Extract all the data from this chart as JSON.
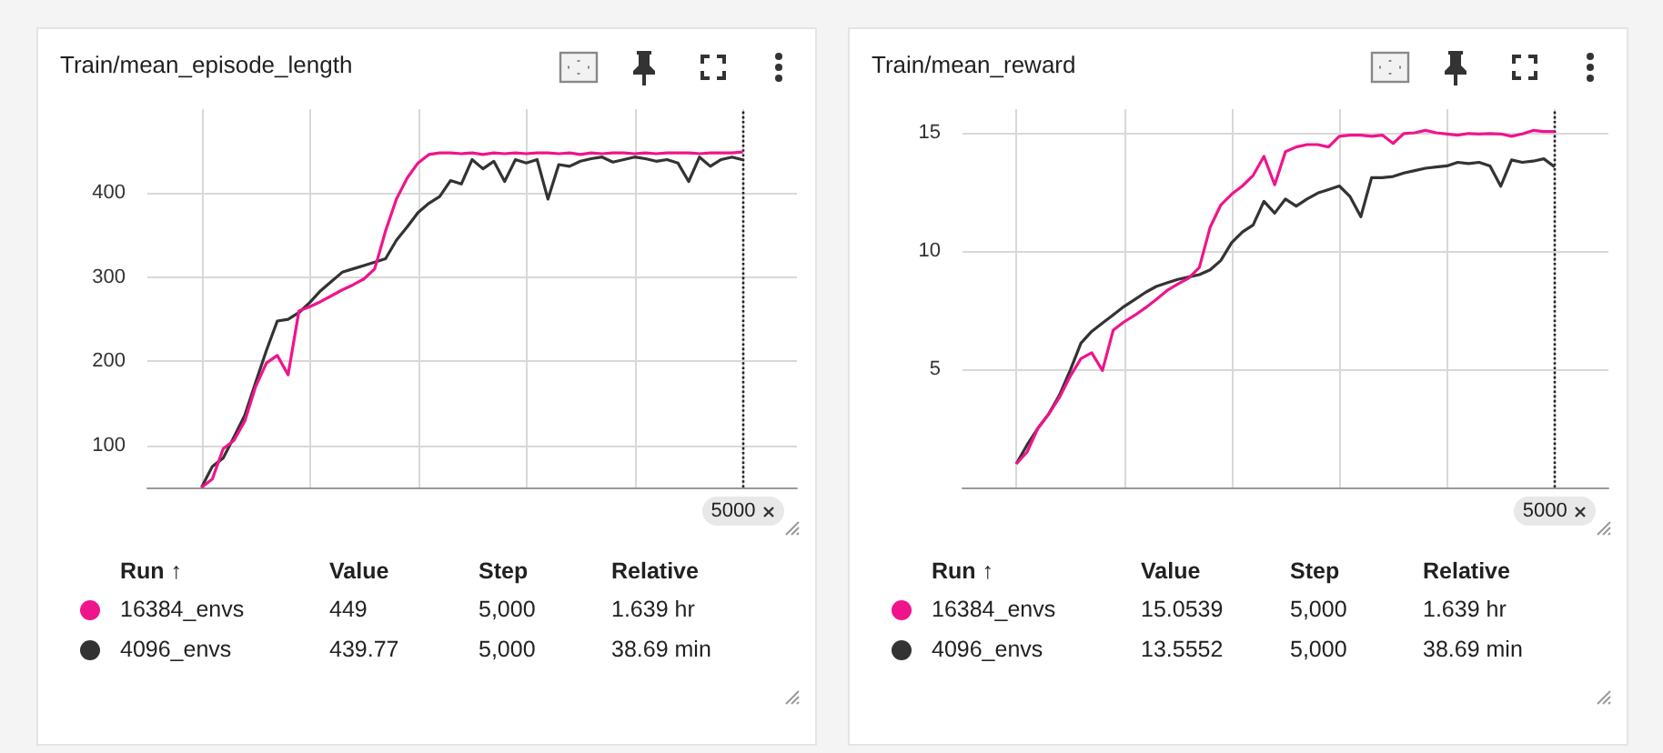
{
  "chart_data": [
    {
      "type": "line",
      "title": "Train/mean_episode_length",
      "ylim": [
        50,
        500
      ],
      "yticks": [
        100,
        200,
        300,
        400
      ],
      "tick_labels": "y",
      "grid": true,
      "legend": "bottom",
      "line_style": "solid",
      "categories": [
        null,
        null,
        null,
        null,
        null,
        null,
        null,
        null,
        null,
        null,
        null,
        null,
        null,
        null,
        null,
        null,
        null,
        null,
        null,
        null,
        null,
        null,
        null,
        null,
        null,
        null,
        null,
        null,
        null,
        null,
        null,
        null,
        null,
        null,
        null,
        null,
        null,
        null,
        null,
        null,
        null,
        null,
        null,
        null,
        null,
        null,
        null,
        null,
        null,
        null,
        null,
        null,
        null,
        null,
        null,
        null,
        null,
        null,
        null,
        null,
        null
      ],
      "annotations": [
        "5000",
        "Run ↑",
        "Value",
        "Step",
        "Relative",
        "449",
        "5,000",
        "1.639 hr",
        "439.77",
        "5,000",
        "38.69 min"
      ],
      "series": [
        {
          "name": "16384_envs",
          "color": "#f0148c",
          "values": [
            null,
            null,
            null,
            null,
            null,
            50,
            60,
            96,
            106,
            129,
            170,
            198,
            207,
            184,
            260,
            265,
            271,
            278,
            285,
            291,
            298,
            310,
            355,
            393,
            418,
            436,
            446,
            448,
            448,
            447,
            448,
            446,
            448,
            447,
            448,
            447,
            448,
            448,
            447,
            448,
            446,
            448,
            447,
            448,
            448,
            447,
            448,
            447,
            448,
            448,
            448,
            447,
            448,
            448,
            448,
            449,
            null,
            null,
            null,
            null,
            null
          ]
        },
        {
          "name": "4096_envs",
          "color": "#333333",
          "values": [
            null,
            null,
            null,
            null,
            null,
            50,
            75,
            85,
            110,
            136,
            175,
            213,
            248,
            250,
            258,
            270,
            284,
            295,
            306,
            310,
            314,
            318,
            322,
            344,
            360,
            377,
            388,
            396,
            415,
            411,
            440,
            429,
            438,
            414,
            440,
            436,
            440,
            393,
            434,
            432,
            438,
            441,
            443,
            437,
            440,
            443,
            441,
            438,
            440,
            436,
            414,
            443,
            432,
            440,
            443,
            439.77,
            null,
            null,
            null,
            null,
            null
          ]
        }
      ]
    },
    {
      "type": "line",
      "title": "Train/mean_reward",
      "ylim": [
        0,
        16
      ],
      "yticks": [
        5,
        10,
        15
      ],
      "tick_labels": "y",
      "grid": true,
      "legend": "bottom",
      "line_style": "solid",
      "categories": [
        null,
        null,
        null,
        null,
        null,
        null,
        null,
        null,
        null,
        null,
        null,
        null,
        null,
        null,
        null,
        null,
        null,
        null,
        null,
        null,
        null,
        null,
        null,
        null,
        null,
        null,
        null,
        null,
        null,
        null,
        null,
        null,
        null,
        null,
        null,
        null,
        null,
        null,
        null,
        null,
        null,
        null,
        null,
        null,
        null,
        null,
        null,
        null,
        null,
        null,
        null,
        null,
        null,
        null,
        null,
        null,
        null,
        null,
        null,
        null,
        null
      ],
      "annotations": [
        "5000",
        "Run ↑",
        "Value",
        "Step",
        "Relative",
        "15.0539",
        "5,000",
        "1.639 hr",
        "13.5552",
        "5,000",
        "38.69 min"
      ],
      "series": [
        {
          "name": "16384_envs",
          "color": "#f0148c",
          "values": [
            null,
            null,
            null,
            null,
            null,
            1.0,
            1.5,
            2.5,
            3.1,
            3.8,
            4.7,
            5.45,
            5.7,
            4.95,
            6.65,
            7.0,
            7.28,
            7.6,
            7.95,
            8.33,
            8.6,
            8.85,
            9.3,
            11.0,
            11.95,
            12.4,
            12.75,
            13.2,
            14.0,
            12.8,
            14.2,
            14.4,
            14.5,
            14.5,
            14.4,
            14.85,
            14.9,
            14.9,
            14.85,
            14.9,
            14.55,
            14.97,
            15.0,
            15.1,
            15.0,
            14.95,
            14.9,
            14.97,
            14.95,
            14.97,
            14.95,
            14.85,
            14.95,
            15.1,
            15.05,
            15.0539,
            null,
            null,
            null,
            null,
            null
          ]
        },
        {
          "name": "4096_envs",
          "color": "#333333",
          "values": [
            null,
            null,
            null,
            null,
            null,
            1.0,
            1.8,
            2.5,
            3.1,
            3.9,
            4.95,
            6.1,
            6.6,
            6.95,
            7.3,
            7.65,
            7.95,
            8.25,
            8.5,
            8.65,
            8.8,
            8.9,
            9.0,
            9.2,
            9.6,
            10.35,
            10.8,
            11.1,
            12.1,
            11.6,
            12.2,
            11.9,
            12.2,
            12.45,
            12.6,
            12.75,
            12.3,
            11.45,
            13.1,
            13.1,
            13.15,
            13.3,
            13.4,
            13.5,
            13.55,
            13.6,
            13.75,
            13.7,
            13.75,
            13.6,
            12.74,
            13.85,
            13.75,
            13.8,
            13.9,
            13.5552,
            null,
            null,
            null,
            null,
            null
          ]
        }
      ]
    }
  ]
}
